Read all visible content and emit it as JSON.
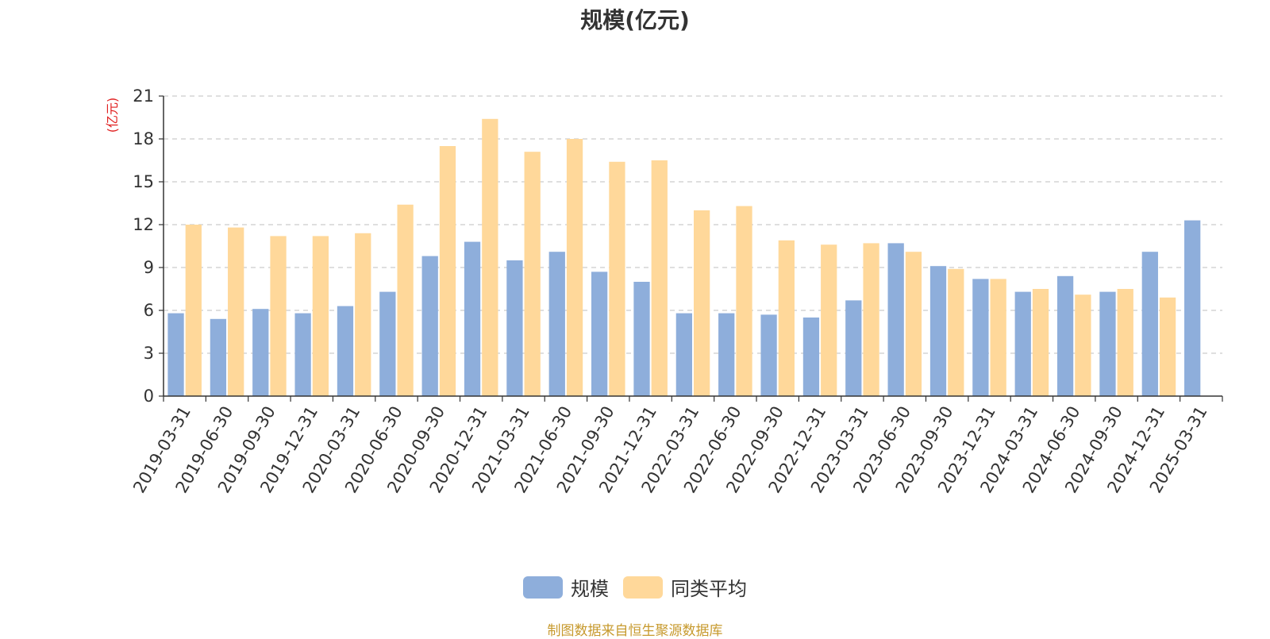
{
  "chart_data": {
    "type": "bar",
    "title": "规模(亿元)",
    "ylabel": "(亿元)",
    "xlabel": "",
    "ylim": [
      0,
      21
    ],
    "yticks": [
      0,
      3,
      6,
      9,
      12,
      15,
      18,
      21
    ],
    "grid": true,
    "legend_position": "bottom",
    "categories": [
      "2019-03-31",
      "2019-06-30",
      "2019-09-30",
      "2019-12-31",
      "2020-03-31",
      "2020-06-30",
      "2020-09-30",
      "2020-12-31",
      "2021-03-31",
      "2021-06-30",
      "2021-09-30",
      "2021-12-31",
      "2022-03-31",
      "2022-06-30",
      "2022-09-30",
      "2022-12-31",
      "2023-03-31",
      "2023-06-30",
      "2023-09-30",
      "2023-12-31",
      "2024-03-31",
      "2024-06-30",
      "2024-09-30",
      "2024-12-31",
      "2025-03-31"
    ],
    "series": [
      {
        "name": "规模",
        "color": "#8eaedb",
        "values": [
          5.8,
          5.4,
          6.1,
          5.8,
          6.3,
          7.3,
          9.8,
          10.8,
          9.5,
          10.1,
          8.7,
          8.0,
          5.8,
          5.8,
          5.7,
          5.5,
          6.7,
          10.7,
          9.1,
          8.2,
          7.3,
          8.4,
          7.3,
          10.1,
          12.3
        ]
      },
      {
        "name": "同类平均",
        "color": "#ffd89a",
        "values": [
          12.0,
          11.8,
          11.2,
          11.2,
          11.4,
          13.4,
          17.5,
          19.4,
          17.1,
          18.0,
          16.4,
          16.5,
          13.0,
          13.3,
          10.9,
          10.6,
          10.7,
          10.1,
          8.9,
          8.2,
          7.5,
          7.1,
          7.5,
          6.9,
          null
        ]
      }
    ]
  },
  "footer": {
    "source": "制图数据来自恒生聚源数据库"
  },
  "colors": {
    "axis_label_red": "#e02020",
    "grid": "#cccccc",
    "axis": "#333333"
  }
}
